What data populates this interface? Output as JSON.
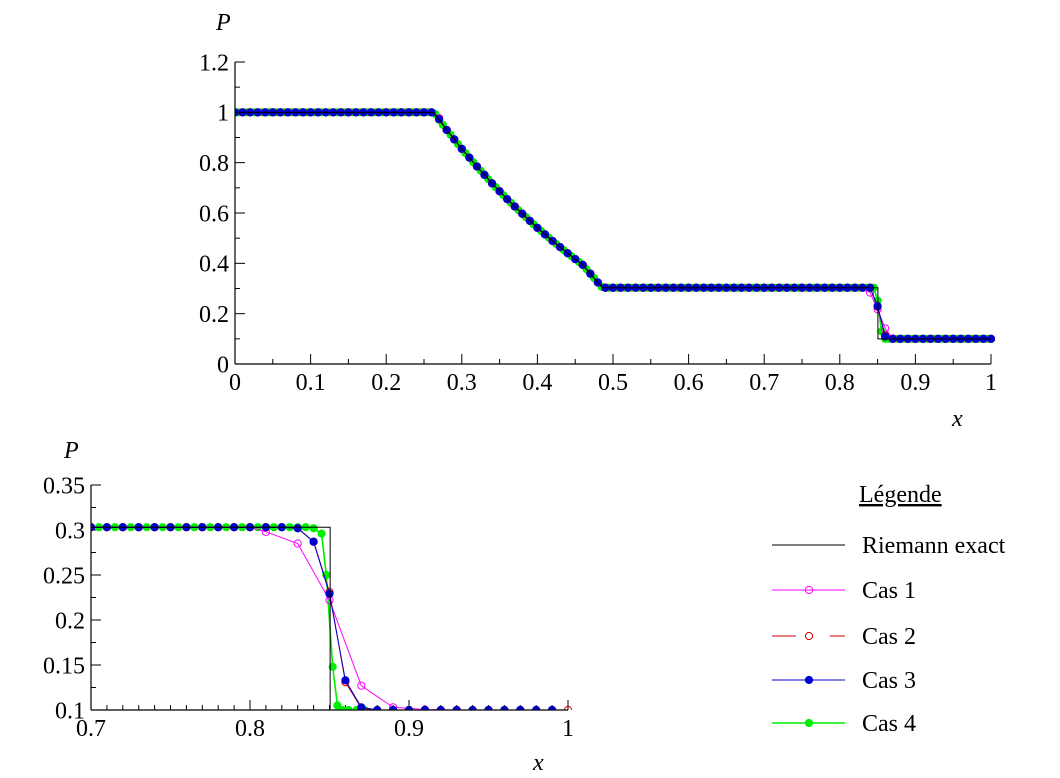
{
  "chart_data": [
    {
      "type": "line",
      "ylabel": "P",
      "xlabel": "x",
      "xlim": [
        0,
        1
      ],
      "ylim": [
        0,
        1.2
      ],
      "x_ticks": [
        "0",
        "0.1",
        "0.2",
        "0.3",
        "0.4",
        "0.5",
        "0.6",
        "0.7",
        "0.8",
        "0.9",
        "1"
      ],
      "y_ticks": [
        "0",
        "0.2",
        "0.4",
        "0.6",
        "0.8",
        "1",
        "1.2"
      ],
      "grid": false,
      "series": [
        {
          "name": "Riemann exact",
          "color": "#000000",
          "marker": "none",
          "x": [
            0,
            0.2628,
            0.28,
            0.3,
            0.32,
            0.34,
            0.36,
            0.38,
            0.4,
            0.42,
            0.44,
            0.46,
            0.4859,
            0.8504,
            0.8504,
            1.0
          ],
          "y": [
            1.0,
            1.0,
            0.93,
            0.855,
            0.785,
            0.718,
            0.655,
            0.597,
            0.541,
            0.489,
            0.44,
            0.394,
            0.3031,
            0.3031,
            0.1,
            0.1
          ]
        },
        {
          "name": "Cas 1",
          "color": "#ff00ff",
          "marker": "open-circle"
        },
        {
          "name": "Cas 2",
          "color": "#cc0000",
          "marker": "open-circle"
        },
        {
          "name": "Cas 3",
          "color": "#0000cc",
          "marker": "filled-circle"
        },
        {
          "name": "Cas 4",
          "color": "#00ee00",
          "marker": "filled-circle"
        }
      ]
    },
    {
      "type": "line",
      "ylabel": "P",
      "xlabel": "x",
      "xlim": [
        0.7,
        1
      ],
      "ylim": [
        0.1,
        0.35
      ],
      "x_ticks": [
        "0.7",
        "0.8",
        "0.9",
        "1"
      ],
      "y_ticks": [
        "0.1",
        "0.15",
        "0.2",
        "0.25",
        "0.3",
        "0.35"
      ],
      "grid": false,
      "series": [
        {
          "name": "Riemann exact",
          "color": "#000000",
          "marker": "none",
          "x": [
            0.7,
            0.8504,
            0.8504,
            1.0
          ],
          "y": [
            0.3031,
            0.3031,
            0.1,
            0.1
          ]
        },
        {
          "name": "Cas 1",
          "color": "#ff00ff",
          "marker": "open-circle",
          "x": [
            0.7,
            0.71,
            0.72,
            0.73,
            0.74,
            0.75,
            0.76,
            0.77,
            0.78,
            0.79,
            0.8,
            0.81,
            0.83,
            0.85,
            0.87,
            0.89,
            0.91,
            0.93,
            0.95,
            0.97,
            0.99
          ],
          "y": [
            0.3031,
            0.3031,
            0.3031,
            0.3031,
            0.3031,
            0.3031,
            0.3031,
            0.3031,
            0.3031,
            0.3031,
            0.3031,
            0.298,
            0.285,
            0.222,
            0.127,
            0.103,
            0.1005,
            0.1,
            0.1,
            0.1,
            0.1
          ]
        },
        {
          "name": "Cas 2",
          "color": "#cc0000",
          "marker": "open-circle",
          "x": [
            0.7,
            0.71,
            0.72,
            0.73,
            0.74,
            0.75,
            0.76,
            0.77,
            0.78,
            0.79,
            0.8,
            0.81,
            0.82,
            0.83,
            0.84,
            0.85,
            0.86,
            0.87,
            0.88,
            0.89,
            0.9,
            0.91,
            0.92,
            0.93,
            0.94,
            0.95,
            0.96,
            0.97,
            0.98,
            0.99,
            1.0
          ],
          "y": [
            0.3031,
            0.3031,
            0.3031,
            0.3031,
            0.3031,
            0.3031,
            0.3031,
            0.3031,
            0.3031,
            0.3031,
            0.3031,
            0.3031,
            0.3031,
            0.302,
            0.287,
            0.231,
            0.131,
            0.102,
            0.1,
            0.1,
            0.1,
            0.1,
            0.1,
            0.1,
            0.1,
            0.1,
            0.1,
            0.1,
            0.1,
            0.1,
            0.1
          ]
        },
        {
          "name": "Cas 3",
          "color": "#0000cc",
          "marker": "filled-circle",
          "x": [
            0.7,
            0.71,
            0.72,
            0.73,
            0.74,
            0.75,
            0.76,
            0.77,
            0.78,
            0.79,
            0.8,
            0.81,
            0.82,
            0.83,
            0.84,
            0.85,
            0.86,
            0.87,
            0.88,
            0.89,
            0.9,
            0.91,
            0.92,
            0.93,
            0.94,
            0.95,
            0.96,
            0.97,
            0.98,
            0.99
          ],
          "y": [
            0.3031,
            0.3031,
            0.3031,
            0.3031,
            0.3031,
            0.3031,
            0.3031,
            0.3031,
            0.3031,
            0.3031,
            0.3031,
            0.3031,
            0.3031,
            0.302,
            0.287,
            0.229,
            0.133,
            0.103,
            0.1,
            0.1,
            0.1,
            0.1,
            0.1,
            0.1,
            0.1,
            0.1,
            0.1,
            0.1,
            0.1,
            0.1
          ]
        },
        {
          "name": "Cas 4",
          "color": "#00ee00",
          "marker": "filled-circle",
          "x": [
            0.7,
            0.705,
            0.71,
            0.715,
            0.72,
            0.725,
            0.73,
            0.735,
            0.74,
            0.745,
            0.75,
            0.755,
            0.76,
            0.765,
            0.77,
            0.775,
            0.78,
            0.785,
            0.79,
            0.795,
            0.8,
            0.805,
            0.81,
            0.815,
            0.82,
            0.825,
            0.83,
            0.835,
            0.84,
            0.845,
            0.848,
            0.852,
            0.855,
            0.858,
            0.862,
            0.867,
            0.872,
            0.88
          ],
          "y": [
            0.3031,
            0.3031,
            0.3031,
            0.3031,
            0.3031,
            0.3031,
            0.3031,
            0.3031,
            0.3031,
            0.3031,
            0.3031,
            0.3031,
            0.3031,
            0.3031,
            0.3031,
            0.3031,
            0.3031,
            0.3031,
            0.3031,
            0.3031,
            0.3031,
            0.3031,
            0.3031,
            0.3031,
            0.3031,
            0.3031,
            0.3031,
            0.3031,
            0.302,
            0.296,
            0.25,
            0.148,
            0.105,
            0.1,
            0.1,
            0.1,
            0.1,
            0.1
          ]
        }
      ]
    }
  ],
  "legend": {
    "title": "Légende",
    "items": [
      "Riemann exact",
      "Cas 1",
      "Cas 2",
      "Cas 3",
      "Cas 4"
    ]
  }
}
